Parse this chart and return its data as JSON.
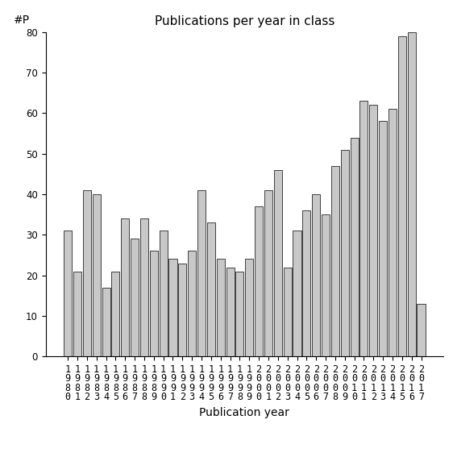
{
  "title": "Publications per year in class",
  "xlabel": "Publication year",
  "ylabel": "#P",
  "years": [
    1980,
    1981,
    1982,
    1983,
    1984,
    1985,
    1986,
    1987,
    1988,
    1989,
    1990,
    1991,
    1992,
    1993,
    1994,
    1995,
    1996,
    1997,
    1998,
    1999,
    2000,
    2001,
    2002,
    2003,
    2004,
    2005,
    2006,
    2007,
    2008,
    2009,
    2010,
    2011,
    2012,
    2013,
    2014,
    2015,
    2016,
    2017
  ],
  "values": [
    31,
    21,
    41,
    40,
    17,
    21,
    34,
    29,
    34,
    26,
    31,
    24,
    23,
    26,
    41,
    33,
    24,
    22,
    21,
    24,
    37,
    41,
    46,
    22,
    31,
    36,
    40,
    35,
    47,
    51,
    54,
    63,
    62,
    58,
    61,
    79,
    80,
    13
  ],
  "bar_color": "#c8c8c8",
  "bar_edge_color": "#000000",
  "ylim": [
    0,
    80
  ],
  "yticks": [
    0,
    10,
    20,
    30,
    40,
    50,
    60,
    70,
    80
  ],
  "background_color": "#ffffff",
  "title_fontsize": 11,
  "label_fontsize": 10,
  "tick_fontsize": 8.5
}
